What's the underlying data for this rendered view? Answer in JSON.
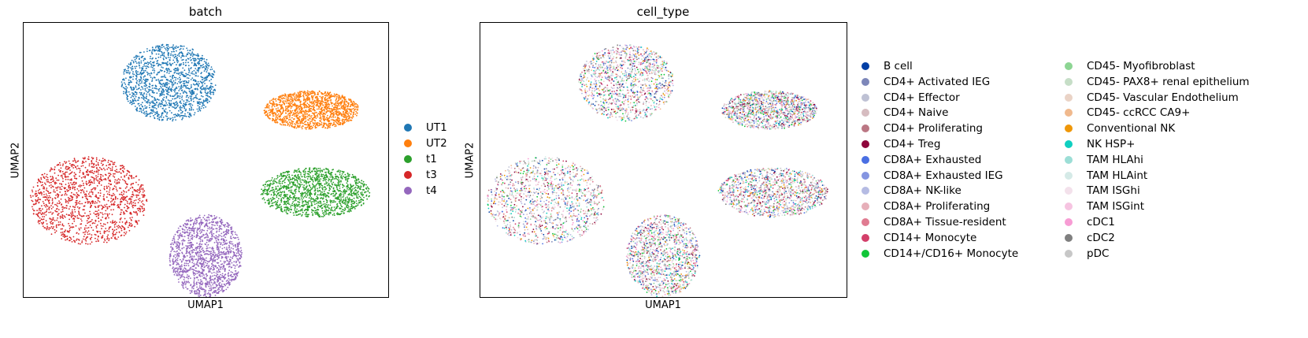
{
  "chart_data": [
    {
      "type": "scatter",
      "title": "batch",
      "xlabel": "UMAP1",
      "ylabel": "UMAP2",
      "grid": false,
      "legend_placement": "right",
      "series": [
        {
          "name": "UT1",
          "color": "#1f77b4",
          "cluster": {
            "cx": 0.4,
            "cy": 0.78,
            "rx": 0.13,
            "ry": 0.14
          }
        },
        {
          "name": "UT2",
          "color": "#ff7f0e",
          "cluster": {
            "cx": 0.79,
            "cy": 0.68,
            "rx": 0.13,
            "ry": 0.07
          }
        },
        {
          "name": "t1",
          "color": "#2ca02c",
          "cluster": {
            "cx": 0.8,
            "cy": 0.38,
            "rx": 0.15,
            "ry": 0.09
          }
        },
        {
          "name": "t3",
          "color": "#d62728",
          "cluster": {
            "cx": 0.18,
            "cy": 0.35,
            "rx": 0.16,
            "ry": 0.16
          }
        },
        {
          "name": "t4",
          "color": "#9467bd",
          "cluster": {
            "cx": 0.5,
            "cy": 0.15,
            "rx": 0.1,
            "ry": 0.15
          }
        }
      ]
    },
    {
      "type": "scatter",
      "title": "cell_type",
      "xlabel": "UMAP1",
      "ylabel": "UMAP2",
      "grid": false,
      "legend_placement": "right",
      "series": [
        {
          "name": "B cell",
          "color": "#023fa5"
        },
        {
          "name": "CD4+ Activated IEG",
          "color": "#7d87b9"
        },
        {
          "name": "CD4+ Effector",
          "color": "#bec1d4"
        },
        {
          "name": "CD4+ Naive",
          "color": "#d6bcc0"
        },
        {
          "name": "CD4+ Proliferating",
          "color": "#bb7784"
        },
        {
          "name": "CD4+ Treg",
          "color": "#8e063b"
        },
        {
          "name": "CD8A+ Exhausted",
          "color": "#4a6fe3"
        },
        {
          "name": "CD8A+ Exhausted IEG",
          "color": "#8595e1"
        },
        {
          "name": "CD8A+ NK-like",
          "color": "#b5bbe3"
        },
        {
          "name": "CD8A+ Proliferating",
          "color": "#e6afb9"
        },
        {
          "name": "CD8A+ Tissue-resident",
          "color": "#e07b91"
        },
        {
          "name": "CD14+ Monocyte",
          "color": "#d33f6a"
        },
        {
          "name": "CD14+/CD16+ Monocyte",
          "color": "#11c638"
        },
        {
          "name": "CD45- Myofibroblast",
          "color": "#8dd593"
        },
        {
          "name": "CD45- PAX8+ renal epithelium",
          "color": "#c6dec7"
        },
        {
          "name": "CD45- Vascular Endothelium",
          "color": "#ead3c6"
        },
        {
          "name": "CD45- ccRCC CA9+",
          "color": "#f0b98d"
        },
        {
          "name": "Conventional NK",
          "color": "#ef9708"
        },
        {
          "name": "NK HSP+",
          "color": "#0fcfc0"
        },
        {
          "name": "TAM HLAhi",
          "color": "#9cded6"
        },
        {
          "name": "TAM HLAint",
          "color": "#d5eae7"
        },
        {
          "name": "TAM ISGhi",
          "color": "#f3e1eb"
        },
        {
          "name": "TAM ISGint",
          "color": "#f6c4e1"
        },
        {
          "name": "cDC1",
          "color": "#f79cd4"
        },
        {
          "name": "cDC2",
          "color": "#7f7f7f"
        },
        {
          "name": "pDC",
          "color": "#c7c7c7"
        }
      ]
    }
  ]
}
